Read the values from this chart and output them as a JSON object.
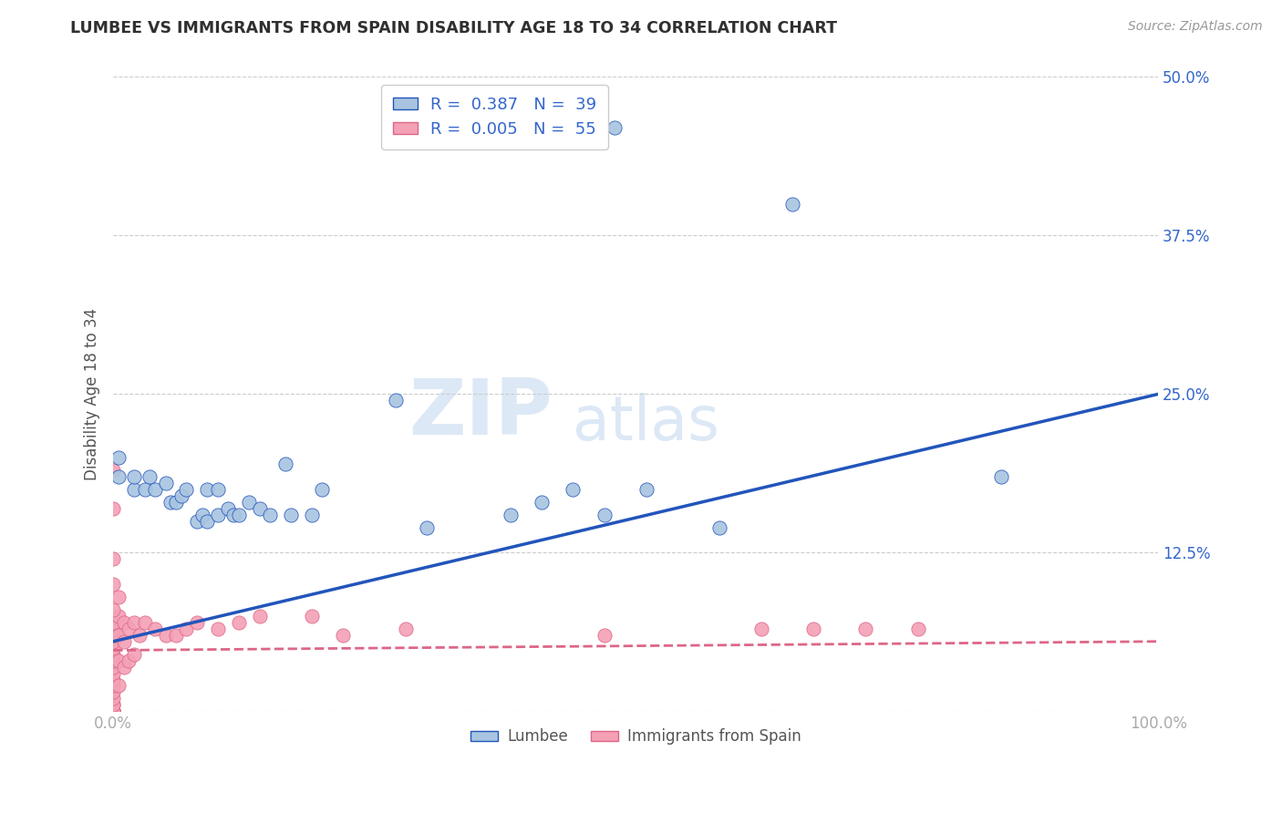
{
  "title": "LUMBEE VS IMMIGRANTS FROM SPAIN DISABILITY AGE 18 TO 34 CORRELATION CHART",
  "source": "Source: ZipAtlas.com",
  "ylabel": "Disability Age 18 to 34",
  "xlim": [
    0.0,
    1.0
  ],
  "ylim": [
    0.0,
    0.5
  ],
  "yticks": [
    0.0,
    0.125,
    0.25,
    0.375,
    0.5
  ],
  "ytick_labels": [
    "",
    "12.5%",
    "25.0%",
    "37.5%",
    "50.0%"
  ],
  "xticks": [
    0.0,
    0.2,
    0.4,
    0.6,
    0.8,
    1.0
  ],
  "xtick_labels": [
    "0.0%",
    "",
    "",
    "",
    "",
    "100.0%"
  ],
  "lumbee_R": 0.387,
  "lumbee_N": 39,
  "spain_R": 0.005,
  "spain_N": 55,
  "lumbee_color": "#a8c4e0",
  "spain_color": "#f4a0b5",
  "lumbee_line_color": "#2255bb",
  "spain_line_color": "#dd6688",
  "lumbee_points_x": [
    0.005,
    0.005,
    0.02,
    0.02,
    0.03,
    0.035,
    0.04,
    0.05,
    0.055,
    0.06,
    0.065,
    0.07,
    0.08,
    0.085,
    0.09,
    0.09,
    0.1,
    0.1,
    0.11,
    0.115,
    0.12,
    0.13,
    0.14,
    0.15,
    0.165,
    0.17,
    0.19,
    0.2,
    0.27,
    0.3,
    0.38,
    0.41,
    0.44,
    0.47,
    0.51,
    0.58,
    0.65,
    0.85,
    0.48
  ],
  "lumbee_points_y": [
    0.2,
    0.185,
    0.175,
    0.185,
    0.175,
    0.185,
    0.175,
    0.18,
    0.165,
    0.165,
    0.17,
    0.175,
    0.15,
    0.155,
    0.15,
    0.175,
    0.155,
    0.175,
    0.16,
    0.155,
    0.155,
    0.165,
    0.16,
    0.155,
    0.195,
    0.155,
    0.155,
    0.175,
    0.245,
    0.145,
    0.155,
    0.165,
    0.175,
    0.155,
    0.175,
    0.145,
    0.4,
    0.185,
    0.46
  ],
  "spain_points_x": [
    0.0,
    0.0,
    0.0,
    0.0,
    0.0,
    0.0,
    0.0,
    0.0,
    0.0,
    0.0,
    0.0,
    0.0,
    0.0,
    0.0,
    0.0,
    0.0,
    0.0,
    0.0,
    0.0,
    0.0,
    0.005,
    0.005,
    0.005,
    0.005,
    0.005,
    0.01,
    0.01,
    0.01,
    0.015,
    0.015,
    0.02,
    0.02,
    0.025,
    0.03,
    0.04,
    0.05,
    0.06,
    0.07,
    0.08,
    0.1,
    0.12,
    0.14,
    0.19,
    0.22,
    0.28,
    0.47,
    0.62,
    0.67,
    0.72,
    0.77,
    0.0,
    0.0,
    0.0,
    0.0,
    0.0
  ],
  "spain_points_y": [
    0.0,
    0.0,
    0.0,
    0.0,
    0.0,
    0.005,
    0.005,
    0.01,
    0.015,
    0.02,
    0.025,
    0.03,
    0.035,
    0.04,
    0.045,
    0.05,
    0.055,
    0.06,
    0.065,
    0.07,
    0.02,
    0.04,
    0.06,
    0.075,
    0.09,
    0.035,
    0.055,
    0.07,
    0.04,
    0.065,
    0.045,
    0.07,
    0.06,
    0.07,
    0.065,
    0.06,
    0.06,
    0.065,
    0.07,
    0.065,
    0.07,
    0.075,
    0.075,
    0.06,
    0.065,
    0.06,
    0.065,
    0.065,
    0.065,
    0.065,
    0.08,
    0.1,
    0.12,
    0.16,
    0.19
  ],
  "lumbee_line_x": [
    0.0,
    1.0
  ],
  "lumbee_line_y": [
    0.055,
    0.25
  ],
  "spain_line_x": [
    0.0,
    1.0
  ],
  "spain_line_y": [
    0.048,
    0.055
  ],
  "background_color": "#ffffff",
  "grid_color": "#cccccc",
  "title_color": "#303030",
  "axis_label_color": "#555555",
  "tick_label_color": "#aaaaaa",
  "right_tick_color": "#3366cc",
  "legend_border_color": "#cccccc"
}
